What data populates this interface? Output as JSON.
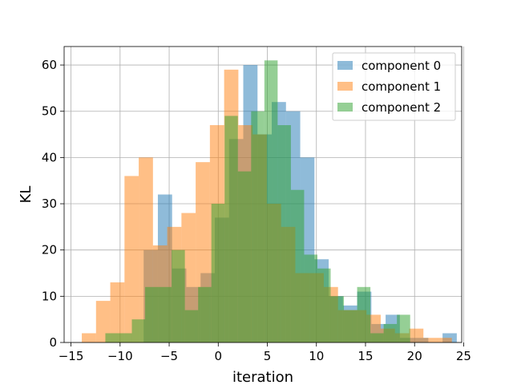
{
  "chart_data": {
    "type": "histogram",
    "xlabel": "iteration",
    "ylabel": "KL",
    "xlim": [
      -15.7,
      24.8
    ],
    "ylim": [
      0,
      64
    ],
    "xticks": [
      -15,
      -10,
      -5,
      0,
      5,
      10,
      15,
      20,
      25
    ],
    "yticks": [
      0,
      10,
      20,
      30,
      40,
      50,
      60
    ],
    "grid": true,
    "legend_position": "top-right",
    "series": [
      {
        "name": "component 0",
        "color": "#1f77b4",
        "opacity": 0.5,
        "bins": [
          {
            "x0": -7.6,
            "x1": -6.15,
            "count": 20
          },
          {
            "x0": -6.15,
            "x1": -4.7,
            "count": 32
          },
          {
            "x0": -4.7,
            "x1": -3.25,
            "count": 16
          },
          {
            "x0": -3.25,
            "x1": -1.8,
            "count": 12
          },
          {
            "x0": -1.8,
            "x1": -0.35,
            "count": 15
          },
          {
            "x0": -0.35,
            "x1": 1.1,
            "count": 27
          },
          {
            "x0": 1.1,
            "x1": 2.55,
            "count": 44
          },
          {
            "x0": 2.55,
            "x1": 4.0,
            "count": 60
          },
          {
            "x0": 4.0,
            "x1": 5.45,
            "count": 45
          },
          {
            "x0": 5.45,
            "x1": 6.9,
            "count": 52
          },
          {
            "x0": 6.9,
            "x1": 8.35,
            "count": 50
          },
          {
            "x0": 8.35,
            "x1": 9.8,
            "count": 40
          },
          {
            "x0": 9.8,
            "x1": 11.25,
            "count": 18
          },
          {
            "x0": 11.25,
            "x1": 12.7,
            "count": 10
          },
          {
            "x0": 12.7,
            "x1": 14.15,
            "count": 8
          },
          {
            "x0": 14.15,
            "x1": 15.6,
            "count": 11
          },
          {
            "x0": 15.6,
            "x1": 17.05,
            "count": 4
          },
          {
            "x0": 17.05,
            "x1": 18.5,
            "count": 6
          },
          {
            "x0": 18.5,
            "x1": 19.95,
            "count": 1
          },
          {
            "x0": 19.95,
            "x1": 21.4,
            "count": 1
          },
          {
            "x0": 21.4,
            "x1": 22.85,
            "count": 0
          },
          {
            "x0": 22.85,
            "x1": 24.3,
            "count": 2
          }
        ]
      },
      {
        "name": "component 1",
        "color": "#ff7f0e",
        "opacity": 0.5,
        "bins": [
          {
            "x0": -13.9,
            "x1": -12.45,
            "count": 2
          },
          {
            "x0": -12.45,
            "x1": -11.0,
            "count": 9
          },
          {
            "x0": -11.0,
            "x1": -9.55,
            "count": 13
          },
          {
            "x0": -9.55,
            "x1": -8.1,
            "count": 36
          },
          {
            "x0": -8.1,
            "x1": -6.65,
            "count": 40
          },
          {
            "x0": -6.65,
            "x1": -5.2,
            "count": 21
          },
          {
            "x0": -5.2,
            "x1": -3.75,
            "count": 25
          },
          {
            "x0": -3.75,
            "x1": -2.3,
            "count": 28
          },
          {
            "x0": -2.3,
            "x1": -0.85,
            "count": 39
          },
          {
            "x0": -0.85,
            "x1": 0.6,
            "count": 47
          },
          {
            "x0": 0.6,
            "x1": 2.05,
            "count": 59
          },
          {
            "x0": 2.05,
            "x1": 3.5,
            "count": 47
          },
          {
            "x0": 3.5,
            "x1": 4.95,
            "count": 45
          },
          {
            "x0": 4.95,
            "x1": 6.4,
            "count": 30
          },
          {
            "x0": 6.4,
            "x1": 7.85,
            "count": 25
          },
          {
            "x0": 7.85,
            "x1": 9.3,
            "count": 15
          },
          {
            "x0": 9.3,
            "x1": 10.75,
            "count": 15
          },
          {
            "x0": 10.75,
            "x1": 12.2,
            "count": 12
          },
          {
            "x0": 12.2,
            "x1": 13.65,
            "count": 7
          },
          {
            "x0": 13.65,
            "x1": 15.1,
            "count": 7
          },
          {
            "x0": 15.1,
            "x1": 16.55,
            "count": 6
          },
          {
            "x0": 16.55,
            "x1": 18.0,
            "count": 3
          },
          {
            "x0": 18.0,
            "x1": 19.45,
            "count": 2
          },
          {
            "x0": 19.45,
            "x1": 20.9,
            "count": 3
          },
          {
            "x0": 20.9,
            "x1": 22.35,
            "count": 1
          },
          {
            "x0": 22.35,
            "x1": 23.8,
            "count": 1
          }
        ]
      },
      {
        "name": "component 2",
        "color": "#2ca02c",
        "opacity": 0.5,
        "bins": [
          {
            "x0": -11.5,
            "x1": -10.15,
            "count": 2
          },
          {
            "x0": -10.15,
            "x1": -8.8,
            "count": 2
          },
          {
            "x0": -8.8,
            "x1": -7.45,
            "count": 5
          },
          {
            "x0": -7.45,
            "x1": -6.1,
            "count": 12
          },
          {
            "x0": -6.1,
            "x1": -4.75,
            "count": 12
          },
          {
            "x0": -4.75,
            "x1": -3.4,
            "count": 20
          },
          {
            "x0": -3.4,
            "x1": -2.05,
            "count": 7
          },
          {
            "x0": -2.05,
            "x1": -0.7,
            "count": 12
          },
          {
            "x0": -0.7,
            "x1": 0.65,
            "count": 30
          },
          {
            "x0": 0.65,
            "x1": 2.0,
            "count": 49
          },
          {
            "x0": 2.0,
            "x1": 3.35,
            "count": 37
          },
          {
            "x0": 3.35,
            "x1": 4.7,
            "count": 50
          },
          {
            "x0": 4.7,
            "x1": 6.05,
            "count": 61
          },
          {
            "x0": 6.05,
            "x1": 7.4,
            "count": 47
          },
          {
            "x0": 7.4,
            "x1": 8.75,
            "count": 33
          },
          {
            "x0": 8.75,
            "x1": 10.1,
            "count": 19
          },
          {
            "x0": 10.1,
            "x1": 11.45,
            "count": 16
          },
          {
            "x0": 11.45,
            "x1": 12.8,
            "count": 10
          },
          {
            "x0": 12.8,
            "x1": 14.15,
            "count": 7
          },
          {
            "x0": 14.15,
            "x1": 15.5,
            "count": 12
          },
          {
            "x0": 15.5,
            "x1": 16.85,
            "count": 2
          },
          {
            "x0": 16.85,
            "x1": 18.2,
            "count": 4
          },
          {
            "x0": 18.2,
            "x1": 19.55,
            "count": 6
          }
        ]
      }
    ]
  }
}
